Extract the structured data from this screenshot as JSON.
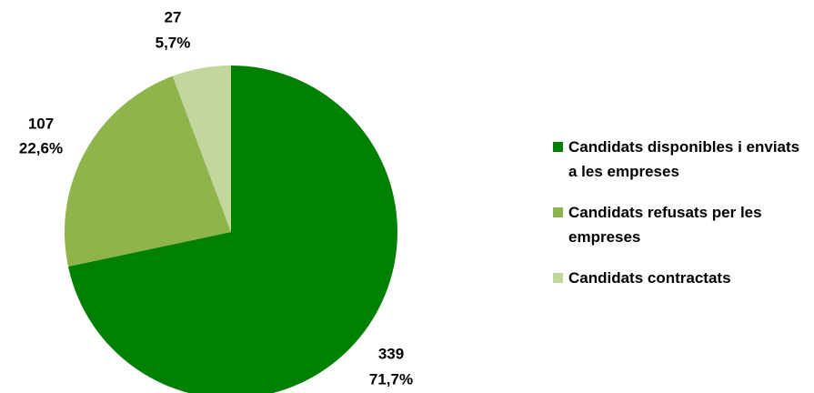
{
  "chart_data": {
    "type": "pie",
    "categories": [
      "Candidats disponibles i enviats a les empreses",
      "Candidats refusats per les empreses",
      "Candidats contractats"
    ],
    "values": [
      339,
      107,
      27
    ],
    "percent_labels": [
      "71,7%",
      "22,6%",
      "5,7%"
    ],
    "colors": [
      "#008000",
      "#8fb44a",
      "#c3d69b"
    ],
    "legend": "right"
  }
}
